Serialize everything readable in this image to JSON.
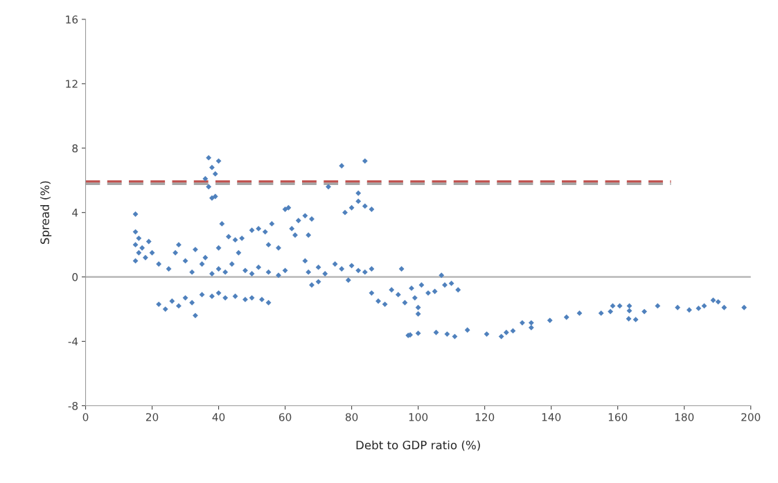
{
  "chart_data": {
    "type": "scatter",
    "xlabel": "Debt to GDP ratio (%)",
    "ylabel": "Spread (%)",
    "xlim": [
      0,
      200
    ],
    "xticks": [
      0,
      20,
      40,
      60,
      80,
      100,
      120,
      140,
      160,
      180,
      200
    ],
    "ylim": [
      -8,
      16
    ],
    "yticks": [
      -8,
      -4,
      0,
      4,
      8,
      12,
      16
    ],
    "grid": false,
    "legend": false,
    "marker": "diamond",
    "ref_lines": [
      {
        "axis": "y",
        "value": 0,
        "color": "#b0b0b0",
        "line_style": "solid"
      }
    ],
    "series": [
      {
        "color": "#4f81bd",
        "x": [
          15,
          15,
          16,
          15,
          17,
          16,
          18,
          15,
          20,
          19,
          22,
          25,
          27,
          28,
          30,
          32,
          33,
          35,
          36,
          38,
          40,
          40,
          42,
          44,
          45,
          46,
          48,
          50,
          52,
          55,
          58,
          60,
          22,
          24,
          26,
          28,
          30,
          32,
          33,
          35,
          38,
          40,
          42,
          45,
          48,
          50,
          53,
          55,
          37,
          38,
          40,
          36,
          39,
          37,
          38,
          39,
          41,
          43,
          47,
          50,
          52,
          54,
          56,
          58,
          60,
          61,
          62,
          64,
          66,
          67,
          68,
          55,
          63,
          66,
          67,
          68,
          70,
          72,
          75,
          77,
          80,
          82,
          84,
          86,
          70,
          79,
          73,
          77,
          84,
          78,
          80,
          82,
          82,
          84,
          86,
          86,
          88,
          90,
          92,
          94,
          95,
          96,
          98,
          99,
          100,
          101,
          103,
          105,
          107,
          108,
          110,
          112,
          100,
          97,
          97.6,
          100,
          105.4,
          108.7,
          111,
          114.8,
          120.6,
          125,
          126.5,
          128.5,
          131.3,
          134,
          134,
          139.6,
          144.6,
          148.5,
          155,
          157.8,
          158.5,
          160.6,
          163.3,
          163.5,
          163.5,
          165.4,
          168,
          172,
          178,
          181.5,
          184.3,
          186,
          188.7,
          190.2,
          192,
          198
        ],
        "values": [
          3.9,
          2.8,
          2.4,
          2.0,
          1.8,
          1.5,
          1.2,
          1.0,
          1.5,
          2.2,
          0.8,
          0.5,
          1.5,
          2.0,
          1.0,
          0.3,
          1.7,
          0.8,
          1.2,
          0.2,
          0.5,
          1.8,
          0.3,
          0.8,
          2.3,
          1.5,
          0.4,
          0.2,
          0.6,
          0.3,
          0.1,
          0.4,
          -1.7,
          -2.0,
          -1.5,
          -1.8,
          -1.3,
          -1.6,
          -2.4,
          -1.1,
          -1.2,
          -1.0,
          -1.3,
          -1.2,
          -1.4,
          -1.3,
          -1.4,
          -1.6,
          7.4,
          6.8,
          7.2,
          6.1,
          6.4,
          5.6,
          4.9,
          5.0,
          3.3,
          2.5,
          2.4,
          2.9,
          3.0,
          2.8,
          3.3,
          1.8,
          4.2,
          4.3,
          3.0,
          3.5,
          3.8,
          2.6,
          3.6,
          2.0,
          2.6,
          1.0,
          0.3,
          -0.5,
          0.6,
          0.2,
          0.8,
          0.5,
          0.7,
          0.4,
          0.3,
          0.5,
          -0.3,
          -0.2,
          5.6,
          6.9,
          7.2,
          4.0,
          4.3,
          4.7,
          5.2,
          4.4,
          4.2,
          -1.0,
          -1.5,
          -1.7,
          -0.8,
          -1.1,
          0.5,
          -1.6,
          -0.7,
          -1.3,
          -2.3,
          -0.5,
          -1.0,
          -0.9,
          0.1,
          -0.5,
          -0.4,
          -0.8,
          -1.9,
          -3.63,
          -3.6,
          -3.5,
          -3.45,
          -3.55,
          -3.7,
          -3.3,
          -3.55,
          -3.7,
          -3.45,
          -3.35,
          -2.85,
          -3.15,
          -2.85,
          -2.7,
          -2.5,
          -2.25,
          -2.25,
          -2.15,
          -1.8,
          -1.8,
          -2.6,
          -2.1,
          -1.8,
          -2.65,
          -2.15,
          -1.8,
          -1.9,
          -2.05,
          -1.95,
          -1.8,
          -1.45,
          -1.55,
          -1.9,
          -1.9
        ]
      },
      {
        "type": "line",
        "color": "#c0504d",
        "line_style": "dashed",
        "marker": "none",
        "x": [
          0,
          176
        ],
        "values": [
          5.92,
          5.92
        ]
      },
      {
        "type": "line",
        "color": "#a6a6a6",
        "line_style": "dashed",
        "marker": "none",
        "x": [
          0,
          176
        ],
        "values": [
          5.78,
          5.78
        ]
      }
    ]
  }
}
